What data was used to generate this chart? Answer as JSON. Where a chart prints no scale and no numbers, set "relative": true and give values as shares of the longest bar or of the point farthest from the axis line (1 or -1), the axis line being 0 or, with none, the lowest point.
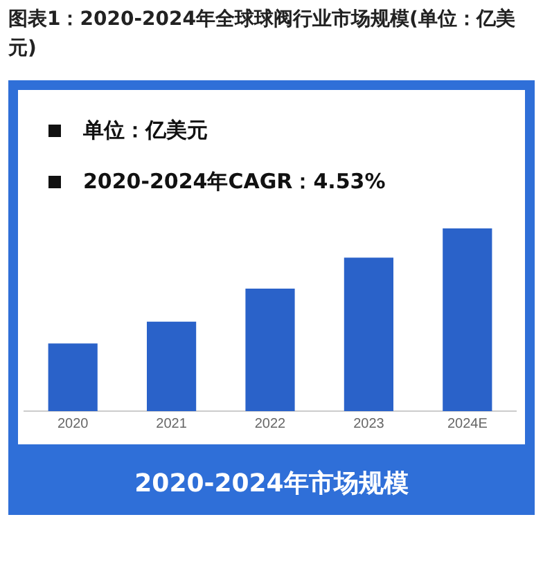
{
  "chart_data": {
    "type": "bar",
    "title": "图表1：2020-2024年全球球阀行业市场规模(单位：亿美元)",
    "categories": [
      "2020",
      "2021",
      "2022",
      "2023",
      "2024E"
    ],
    "values": [
      0.37,
      0.49,
      0.67,
      0.84,
      1
    ],
    "color": "#2a62c9",
    "relative": true,
    "grid": false,
    "legend": false,
    "xlabel": "2020-2024年市场规模",
    "annotations": [
      "单位：亿美元",
      "2020-2024年CAGR：4.53%"
    ]
  }
}
